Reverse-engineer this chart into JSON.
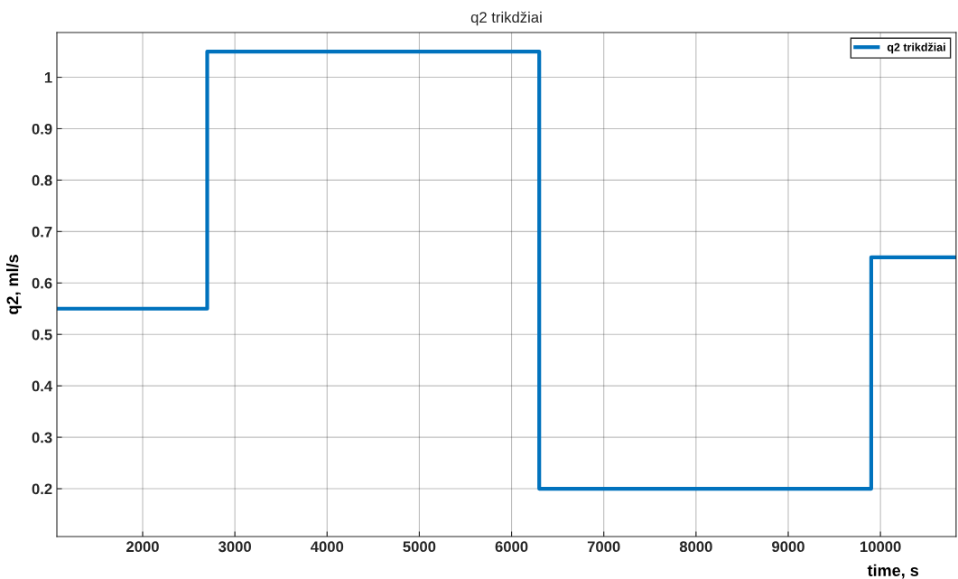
{
  "chart_data": {
    "type": "step",
    "title": "q2 trikdžiai",
    "xlabel": "time, s",
    "ylabel": "q2, ml/s",
    "x": [
      1070,
      2700,
      6300,
      9900,
      10820
    ],
    "series": [
      {
        "name": "q2 trikdžiai",
        "color": "#0072bd",
        "values": [
          0.55,
          1.05,
          0.2,
          0.65,
          0.65
        ]
      }
    ],
    "xlim": [
      1070,
      10820
    ],
    "xticks": [
      2000,
      3000,
      4000,
      5000,
      6000,
      7000,
      8000,
      9000,
      10000
    ],
    "ylim": [
      0.107,
      1.087
    ],
    "yticks": [
      0.2,
      0.3,
      0.4,
      0.5,
      0.6,
      0.7,
      0.8,
      0.9,
      1
    ],
    "grid": true,
    "legend": "top right",
    "line_style": "solid"
  }
}
